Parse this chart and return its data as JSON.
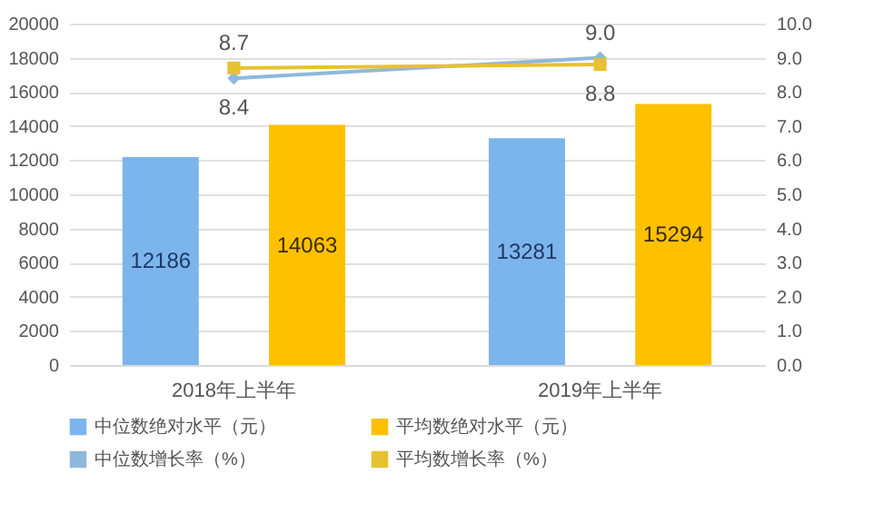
{
  "chart_data": {
    "type": "bar",
    "categories": [
      "2018年上半年",
      "2019年上半年"
    ],
    "series": [
      {
        "name": "中位数绝对水平（元）",
        "color": "#7cb5ec",
        "values": [
          12186,
          13281
        ]
      },
      {
        "name": "平均数绝对水平（元）",
        "color": "#ffc000",
        "values": [
          14063,
          15294
        ]
      },
      {
        "name": "中位数增长率（%）",
        "type": "line",
        "axis": "y2",
        "marker": "diamond",
        "color": "#8fb8dc",
        "values": [
          8.4,
          9.0
        ],
        "value_labels": [
          "8.4",
          "9.0"
        ]
      },
      {
        "name": "平均数增长率（%）",
        "type": "line",
        "axis": "y2",
        "marker": "square",
        "color": "#e6c230",
        "values": [
          8.7,
          8.8
        ],
        "value_labels": [
          "8.7",
          "8.8"
        ]
      }
    ],
    "data_labels": true,
    "ylim": [
      0,
      20000
    ],
    "yticks": [
      0,
      2000,
      4000,
      6000,
      8000,
      10000,
      12000,
      14000,
      16000,
      18000,
      20000
    ],
    "y2lim": [
      0,
      10
    ],
    "y2ticks": [
      {
        "value": 0,
        "label": "0.0"
      },
      {
        "value": 1,
        "label": "1.0"
      },
      {
        "value": 2,
        "label": "2.0"
      },
      {
        "value": 3,
        "label": "3.0"
      },
      {
        "value": 4,
        "label": "4.0"
      },
      {
        "value": 5,
        "label": "5.0"
      },
      {
        "value": 6,
        "label": "6.0"
      },
      {
        "value": 7,
        "label": "7.0"
      },
      {
        "value": 8,
        "label": "8.0"
      },
      {
        "value": 9,
        "label": "9.0"
      },
      {
        "value": 10,
        "label": "10.0"
      }
    ],
    "grid": "y",
    "legend": "bottom"
  }
}
